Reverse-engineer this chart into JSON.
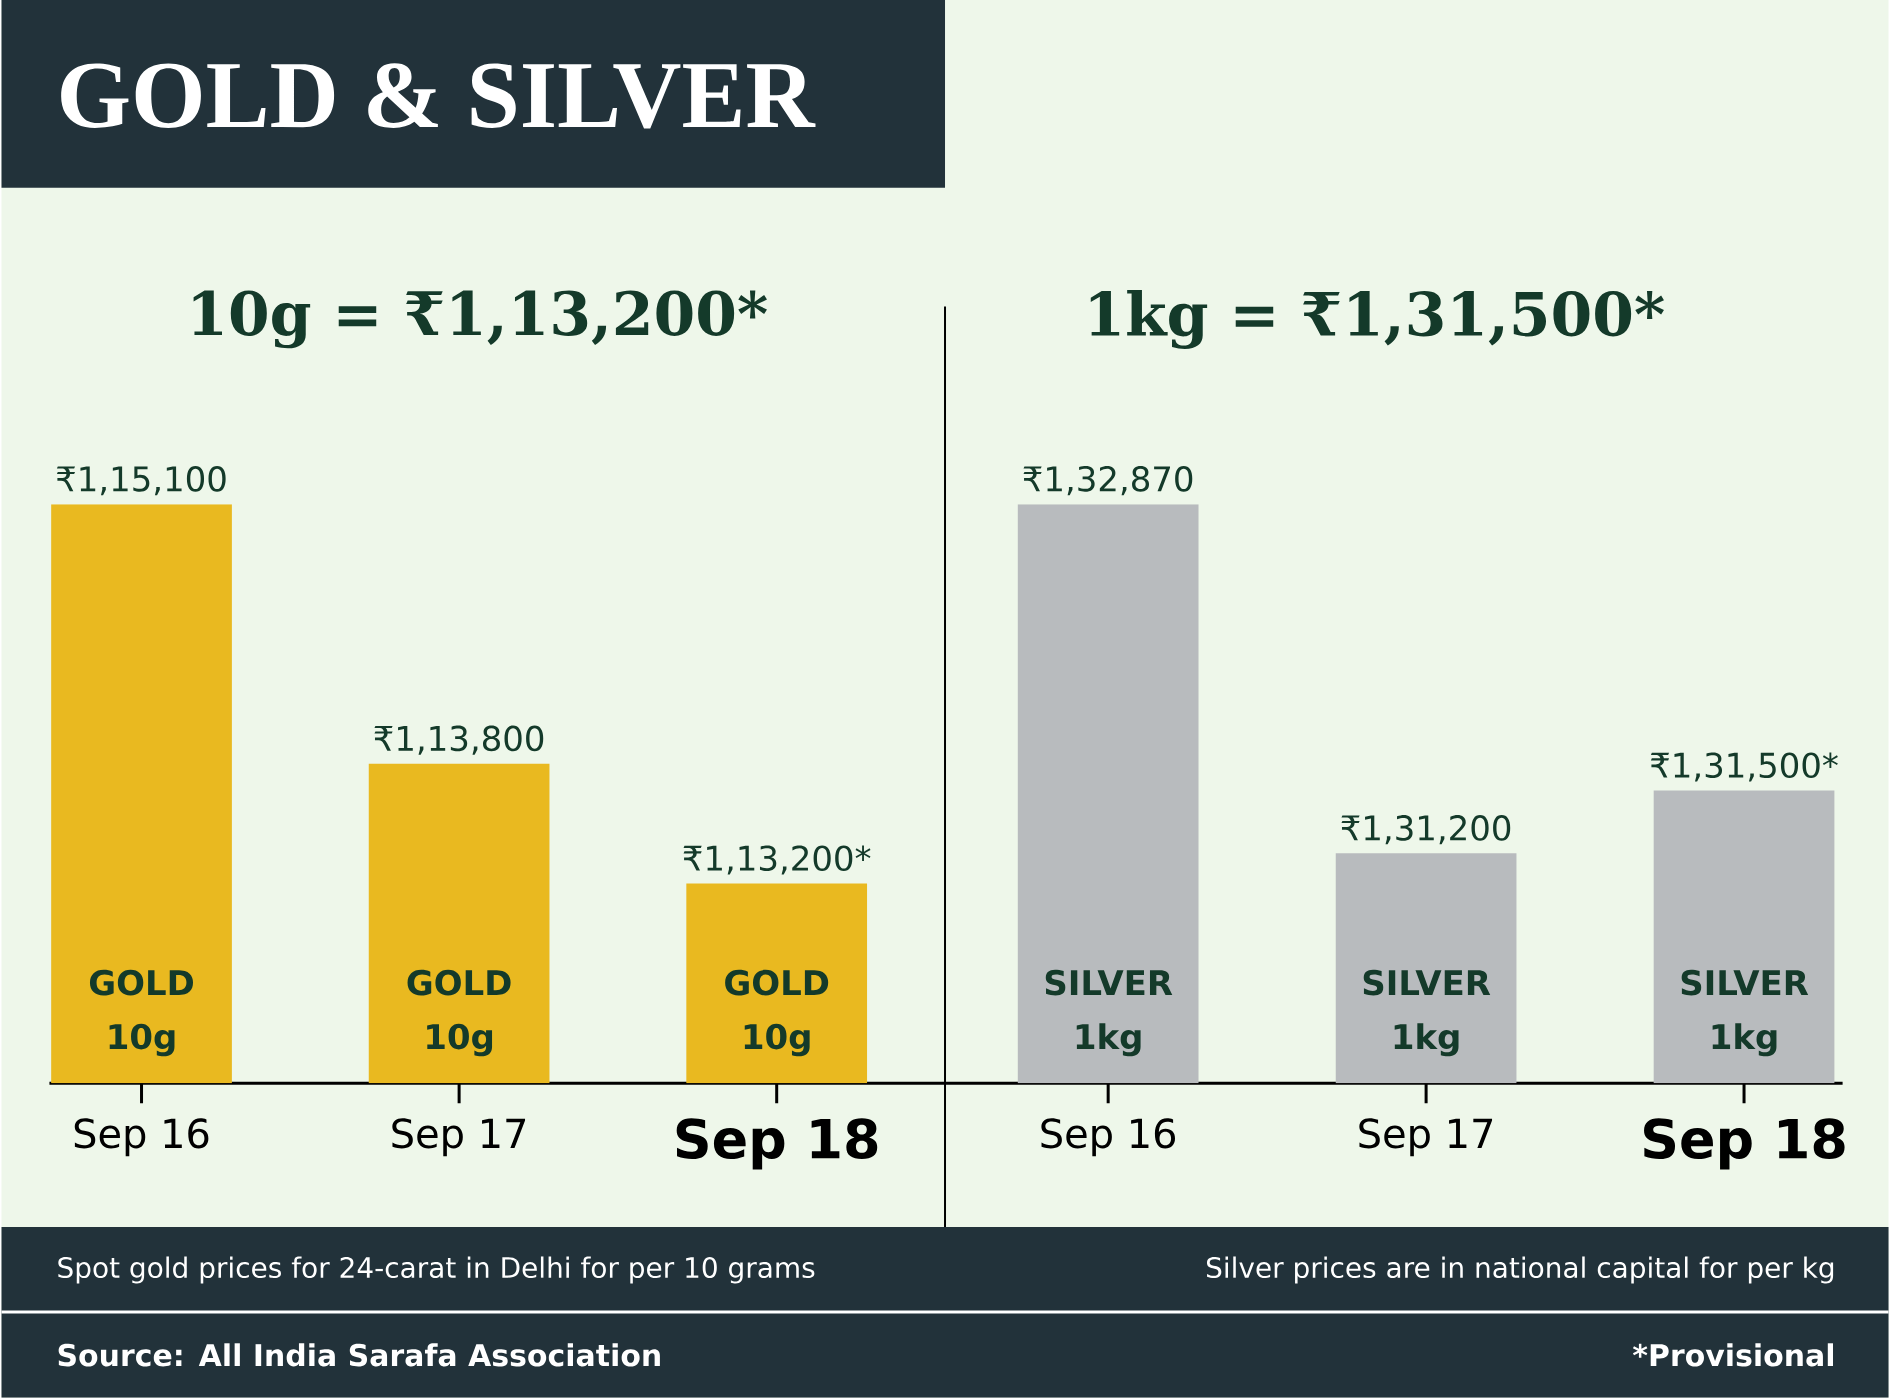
{
  "chart_data": [
    {
      "type": "bar",
      "title": "GOLD & SILVER",
      "subtitle": "10g = ₹1,13,200*",
      "categories": [
        "Sep 16",
        "Sep 17",
        "Sep 18"
      ],
      "series": [
        {
          "name": "GOLD 10g",
          "color": "#e9b920",
          "values": [
            115100,
            113800,
            113200
          ],
          "value_labels": [
            "₹1,15,100",
            "₹1,13,800",
            "₹1,13,200*"
          ]
        }
      ],
      "ylim": [
        112200,
        115100
      ],
      "tick_labels": "x",
      "annotations": [
        "Spot gold prices for 24-carat in Delhi for per 10 grams",
        "Source: All India Sarafa Association"
      ]
    },
    {
      "type": "bar",
      "subtitle": "1kg = ₹1,31,500*",
      "categories": [
        "Sep 16",
        "Sep 17",
        "Sep 18"
      ],
      "series": [
        {
          "name": "SILVER 1kg",
          "color": "#b8bbbe",
          "values": [
            132870,
            131200,
            131500
          ],
          "value_labels": [
            "₹1,32,870",
            "₹1,31,200",
            "₹1,31,500*"
          ]
        }
      ],
      "ylim": [
        130100,
        132870
      ],
      "tick_labels": "x",
      "annotations": [
        "Silver prices are in national capital for per kg",
        "*Provisional"
      ]
    }
  ]
}
